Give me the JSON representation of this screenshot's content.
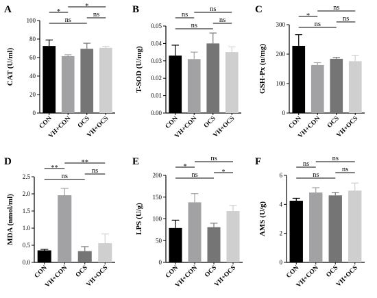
{
  "chart_data": [
    {
      "panel": "A",
      "type": "bar",
      "ylabel": "CAT (U/ml)",
      "categories": [
        "CON",
        "VH+CON",
        "OCS",
        "VH+OCS"
      ],
      "values": [
        72.5,
        61.5,
        69.5,
        70.5
      ],
      "errors": [
        6.5,
        1.5,
        6.0,
        1.5
      ],
      "ylim": [
        0,
        100
      ],
      "yticks": [
        "0",
        "20",
        "40",
        "60",
        "80",
        "100"
      ],
      "comparisons": [
        {
          "from": 0,
          "to": 1,
          "label": "*"
        },
        {
          "from": 0,
          "to": 2,
          "label": "ns"
        },
        {
          "from": 1,
          "to": 3,
          "label": "*"
        },
        {
          "from": 2,
          "to": 3,
          "label": "ns"
        }
      ]
    },
    {
      "panel": "B",
      "type": "bar",
      "ylabel": "T-SOD (U/mg)",
      "categories": [
        "CON",
        "VH+CON",
        "OCS",
        "VH+OCS"
      ],
      "values": [
        0.033,
        0.031,
        0.04,
        0.035
      ],
      "errors": [
        0.006,
        0.004,
        0.006,
        0.003
      ],
      "ylim": [
        0,
        0.05
      ],
      "yticks": [
        "0.00",
        "0.01",
        "0.02",
        "0.03",
        "0.04",
        "0.05"
      ],
      "comparisons": [
        {
          "from": 0,
          "to": 1,
          "label": "ns"
        },
        {
          "from": 0,
          "to": 2,
          "label": "ns"
        },
        {
          "from": 1,
          "to": 3,
          "label": "ns"
        },
        {
          "from": 2,
          "to": 3,
          "label": "ns"
        }
      ]
    },
    {
      "panel": "C",
      "type": "bar",
      "ylabel": "GSH-Px (u/mg)",
      "categories": [
        "CON",
        "VH+CON",
        "OCS",
        "VH+OCS"
      ],
      "values": [
        228,
        163,
        184,
        176
      ],
      "errors": [
        38,
        8,
        5,
        20
      ],
      "ylim": [
        0,
        300
      ],
      "yticks": [
        "0",
        "100",
        "200",
        "300"
      ],
      "comparisons": [
        {
          "from": 0,
          "to": 1,
          "label": "*"
        },
        {
          "from": 0,
          "to": 2,
          "label": "ns"
        },
        {
          "from": 1,
          "to": 3,
          "label": "ns"
        },
        {
          "from": 2,
          "to": 3,
          "label": "ns"
        }
      ]
    },
    {
      "panel": "D",
      "type": "bar",
      "ylabel": "MDA (nmol/ml)",
      "categories": [
        "CON",
        "VH+CON",
        "OCS",
        "VH+OCS"
      ],
      "values": [
        0.35,
        1.96,
        0.33,
        0.56
      ],
      "errors": [
        0.03,
        0.2,
        0.13,
        0.27
      ],
      "ylim": [
        0,
        2.5
      ],
      "yticks": [
        "0.0",
        "0.5",
        "1.0",
        "1.5",
        "2.0",
        "2.5"
      ],
      "comparisons": [
        {
          "from": 0,
          "to": 1,
          "label": "**"
        },
        {
          "from": 0,
          "to": 2,
          "label": "ns"
        },
        {
          "from": 1,
          "to": 3,
          "label": "**"
        },
        {
          "from": 2,
          "to": 3,
          "label": "ns"
        }
      ]
    },
    {
      "panel": "E",
      "type": "bar",
      "ylabel": "LPS (U/g)",
      "categories": [
        "CON",
        "VH+CON",
        "OCS",
        "VH+OCS"
      ],
      "values": [
        79,
        138,
        81,
        118
      ],
      "errors": [
        18,
        20,
        9,
        13
      ],
      "ylim": [
        0,
        200
      ],
      "yticks": [
        "0",
        "50",
        "100",
        "150",
        "200"
      ],
      "comparisons": [
        {
          "from": 0,
          "to": 1,
          "label": "*"
        },
        {
          "from": 0,
          "to": 2,
          "label": "ns"
        },
        {
          "from": 1,
          "to": 3,
          "label": "ns"
        },
        {
          "from": 2,
          "to": 3,
          "label": "*"
        }
      ]
    },
    {
      "panel": "F",
      "type": "bar",
      "ylabel": "AMS (U/g)",
      "categories": [
        "CON",
        "VH+CON",
        "OCS",
        "VH+OCS"
      ],
      "values": [
        4.25,
        4.82,
        4.62,
        4.95
      ],
      "errors": [
        0.17,
        0.33,
        0.2,
        0.52
      ],
      "ylim": [
        0,
        6
      ],
      "yticks": [
        "0",
        "2",
        "4",
        "6"
      ],
      "comparisons": [
        {
          "from": 0,
          "to": 1,
          "label": "ns"
        },
        {
          "from": 0,
          "to": 2,
          "label": "ns"
        },
        {
          "from": 1,
          "to": 3,
          "label": "ns"
        },
        {
          "from": 2,
          "to": 3,
          "label": "ns"
        }
      ]
    }
  ],
  "colors": {
    "bars": [
      "#000000",
      "#a2a2a4",
      "#757575",
      "#cfcfcf"
    ],
    "axis": "#000000"
  }
}
